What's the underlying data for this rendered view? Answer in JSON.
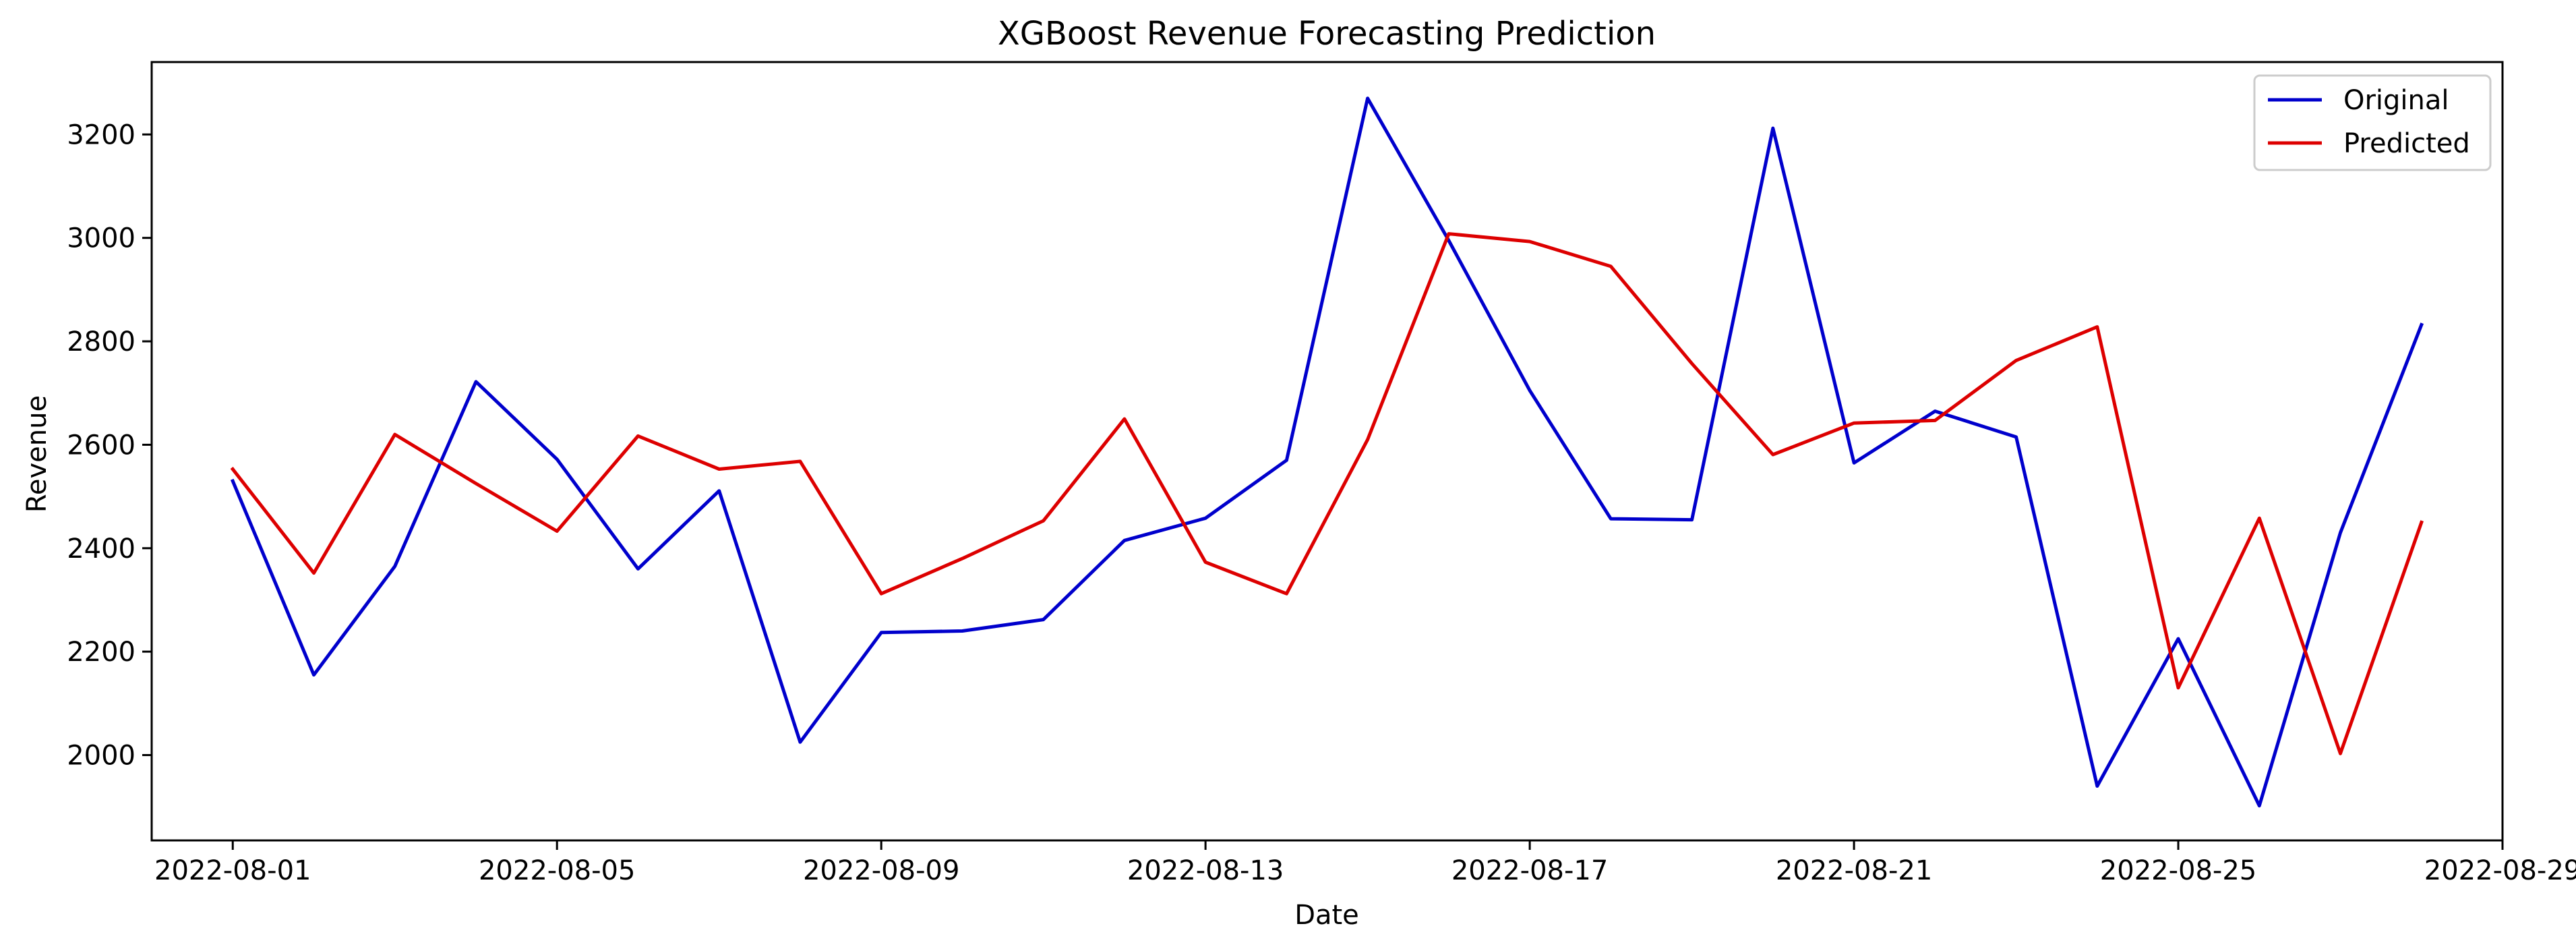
{
  "chart_data": {
    "type": "line",
    "title": "XGBoost Revenue Forecasting Prediction",
    "xlabel": "Date",
    "ylabel": "Revenue",
    "x_axis_type": "date",
    "xlim": [
      "2022-07-31",
      "2022-08-29"
    ],
    "ylim": [
      1835,
      3340
    ],
    "grid": false,
    "legend_position": "top-right",
    "x_ticks": [
      "2022-08-01",
      "2022-08-05",
      "2022-08-09",
      "2022-08-13",
      "2022-08-17",
      "2022-08-21",
      "2022-08-25",
      "2022-08-29"
    ],
    "y_ticks": [
      2000,
      2200,
      2400,
      2600,
      2800,
      3000,
      3200
    ],
    "x": [
      "2022-08-01",
      "2022-08-02",
      "2022-08-03",
      "2022-08-04",
      "2022-08-05",
      "2022-08-06",
      "2022-08-07",
      "2022-08-08",
      "2022-08-09",
      "2022-08-10",
      "2022-08-11",
      "2022-08-12",
      "2022-08-13",
      "2022-08-14",
      "2022-08-15",
      "2022-08-16",
      "2022-08-17",
      "2022-08-18",
      "2022-08-19",
      "2022-08-20",
      "2022-08-21",
      "2022-08-22",
      "2022-08-23",
      "2022-08-24",
      "2022-08-25",
      "2022-08-26",
      "2022-08-27",
      "2022-08-28"
    ],
    "series": [
      {
        "name": "Original",
        "color": "#0000cc",
        "values": [
          2530,
          2155,
          2365,
          2722,
          2572,
          2360,
          2511,
          2025,
          2237,
          2240,
          2262,
          2415,
          2458,
          2570,
          3270,
          2995,
          2705,
          2457,
          2455,
          3212,
          2565,
          2665,
          2615,
          1940,
          2225,
          1902,
          2430,
          2832
        ]
      },
      {
        "name": "Predicted",
        "color": "#dd0000",
        "values": [
          2553,
          2352,
          2620,
          2525,
          2433,
          2617,
          2553,
          2568,
          2312,
          2380,
          2453,
          2650,
          2373,
          2312,
          2610,
          3008,
          2993,
          2945,
          2757,
          2581,
          2642,
          2647,
          2763,
          2828,
          2130,
          2458,
          2003,
          2450
        ]
      }
    ]
  }
}
